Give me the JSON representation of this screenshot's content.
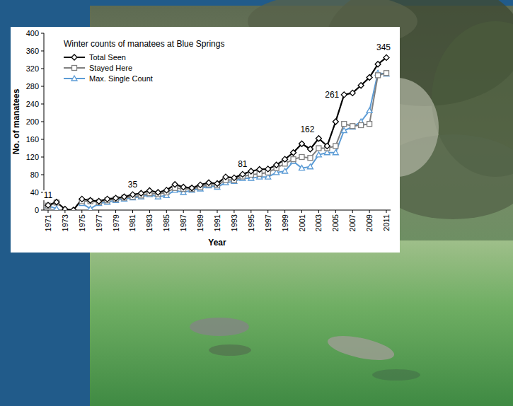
{
  "chart_data": {
    "type": "line",
    "title": "Winter counts of manatees at Blue Springs",
    "x_label": "Year",
    "y_label": "No. of manatees",
    "x": [
      1971,
      1972,
      1973,
      1974,
      1975,
      1976,
      1977,
      1978,
      1979,
      1980,
      1981,
      1982,
      1983,
      1984,
      1985,
      1986,
      1987,
      1988,
      1989,
      1990,
      1991,
      1992,
      1993,
      1994,
      1995,
      1996,
      1997,
      1998,
      1999,
      2000,
      2001,
      2002,
      2003,
      2004,
      2005,
      2006,
      2007,
      2008,
      2009,
      2010,
      2011
    ],
    "series": [
      {
        "name": "Total Seen",
        "color": "#000000",
        "marker": "diamond",
        "values": [
          11,
          18,
          2,
          0,
          25,
          22,
          20,
          25,
          27,
          30,
          35,
          38,
          44,
          40,
          45,
          58,
          52,
          50,
          57,
          62,
          60,
          75,
          73,
          81,
          88,
          92,
          93,
          102,
          115,
          130,
          150,
          138,
          162,
          145,
          200,
          261,
          265,
          282,
          300,
          330,
          345
        ]
      },
      {
        "name": "Stayed Here",
        "color": "#808080",
        "marker": "square",
        "values": [
          10,
          17,
          null,
          null,
          20,
          20,
          18,
          22,
          25,
          28,
          30,
          33,
          38,
          36,
          40,
          50,
          48,
          48,
          52,
          58,
          56,
          68,
          68,
          76,
          80,
          82,
          85,
          95,
          105,
          115,
          120,
          118,
          140,
          140,
          145,
          195,
          190,
          192,
          195,
          305,
          310
        ]
      },
      {
        "name": "Max. Single Count",
        "color": "#5b9bd5",
        "marker": "triangle",
        "values": [
          10,
          3,
          null,
          null,
          15,
          3,
          15,
          18,
          22,
          25,
          28,
          30,
          35,
          30,
          33,
          45,
          40,
          45,
          48,
          55,
          52,
          62,
          65,
          72,
          72,
          75,
          75,
          85,
          88,
          110,
          95,
          98,
          125,
          130,
          130,
          180,
          188,
          200,
          225,
          310,
          308
        ]
      }
    ],
    "xlim": [
      1970.5,
      2011.5
    ],
    "xticks": [
      1971,
      1973,
      1975,
      1977,
      1979,
      1981,
      1983,
      1985,
      1987,
      1989,
      1991,
      1993,
      1995,
      1997,
      1999,
      2001,
      2003,
      2005,
      2007,
      2009,
      2011
    ],
    "ylim": [
      0,
      400
    ],
    "yticks": [
      0,
      40,
      80,
      120,
      160,
      200,
      240,
      280,
      320,
      360,
      400
    ],
    "grid": false,
    "legend": "upper left",
    "annotations": [
      {
        "label": "11",
        "x": 1971,
        "y": 11
      },
      {
        "label": "35",
        "x": 1981,
        "y": 35
      },
      {
        "label": "81",
        "x": 1994,
        "y": 81
      },
      {
        "label": "162",
        "x": 2003,
        "y": 162
      },
      {
        "label": "261",
        "x": 2006,
        "y": 261
      },
      {
        "label": "345",
        "x": 2011,
        "y": 345
      }
    ]
  }
}
